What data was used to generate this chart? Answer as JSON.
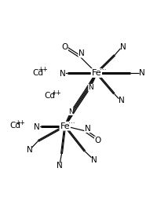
{
  "bg_color": "#ffffff",
  "text_color": "#000000",
  "line_color": "#000000",
  "fe1": [
    0.575,
    0.72
  ],
  "fe2": [
    0.385,
    0.4
  ],
  "font_size_atom": 7.5,
  "font_size_small": 5.5,
  "figsize": [
    2.14,
    2.79
  ],
  "dpi": 100
}
